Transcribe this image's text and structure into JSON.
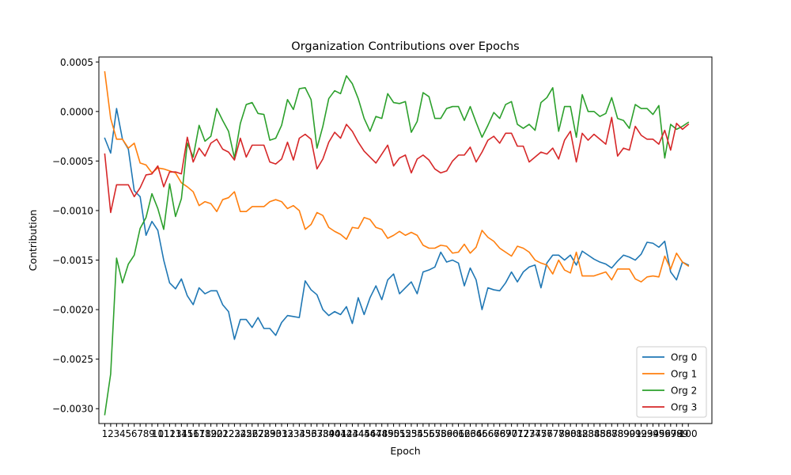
{
  "chart_data": {
    "type": "line",
    "title": "Organization Contributions over Epochs",
    "xlabel": "Epoch",
    "ylabel": "Contribution",
    "ylim": [
      -0.00315,
      0.00055
    ],
    "yticks": [
      0.0005,
      0.0,
      -0.0005,
      -0.001,
      -0.0015,
      -0.002,
      -0.0025,
      -0.003
    ],
    "ytick_labels": [
      "0.0005",
      "0.0000",
      "−0.0005",
      "−0.0010",
      "−0.0015",
      "−0.0020",
      "−0.0025",
      "−0.0030"
    ],
    "legend_position": "lower right",
    "grid": false,
    "x": [
      1,
      2,
      3,
      4,
      5,
      6,
      7,
      8,
      9,
      10,
      11,
      12,
      13,
      14,
      15,
      16,
      17,
      18,
      19,
      20,
      21,
      22,
      23,
      24,
      25,
      26,
      27,
      28,
      29,
      30,
      31,
      32,
      33,
      34,
      35,
      36,
      37,
      38,
      39,
      40,
      41,
      42,
      43,
      44,
      45,
      46,
      47,
      48,
      49,
      50,
      51,
      52,
      53,
      54,
      55,
      56,
      57,
      58,
      59,
      60,
      61,
      62,
      63,
      64,
      65,
      66,
      67,
      68,
      69,
      70,
      71,
      72,
      73,
      74,
      75,
      76,
      77,
      78,
      79,
      80,
      81,
      82,
      83,
      84,
      85,
      86,
      87,
      88,
      89,
      90,
      91,
      92,
      93,
      94,
      95,
      96,
      97,
      98,
      99,
      100
    ],
    "series": [
      {
        "name": "Org 0",
        "color": "#1f77b4",
        "values": [
          -0.00027,
          -0.00042,
          3e-05,
          -0.00028,
          -0.00038,
          -0.0008,
          -0.00086,
          -0.00125,
          -0.00111,
          -0.0012,
          -0.0015,
          -0.00173,
          -0.00179,
          -0.00169,
          -0.00186,
          -0.00195,
          -0.00178,
          -0.00184,
          -0.00181,
          -0.00181,
          -0.00195,
          -0.00202,
          -0.0023,
          -0.0021,
          -0.0021,
          -0.00218,
          -0.00208,
          -0.00219,
          -0.00219,
          -0.00226,
          -0.00213,
          -0.00206,
          -0.00207,
          -0.00208,
          -0.00171,
          -0.0018,
          -0.00185,
          -0.002,
          -0.00206,
          -0.00202,
          -0.00205,
          -0.00197,
          -0.00214,
          -0.00188,
          -0.00205,
          -0.00188,
          -0.00176,
          -0.0019,
          -0.0017,
          -0.00164,
          -0.00184,
          -0.00178,
          -0.00172,
          -0.00184,
          -0.00162,
          -0.0016,
          -0.00157,
          -0.00142,
          -0.00152,
          -0.0015,
          -0.00153,
          -0.00176,
          -0.00158,
          -0.0017,
          -0.002,
          -0.00178,
          -0.0018,
          -0.00181,
          -0.00173,
          -0.00162,
          -0.00172,
          -0.00162,
          -0.00157,
          -0.00155,
          -0.00178,
          -0.00153,
          -0.00145,
          -0.00145,
          -0.0015,
          -0.00145,
          -0.00155,
          -0.00141,
          -0.00145,
          -0.00149,
          -0.00152,
          -0.00154,
          -0.00158,
          -0.00151,
          -0.00145,
          -0.00147,
          -0.0015,
          -0.00144,
          -0.00132,
          -0.00133,
          -0.00137,
          -0.00131,
          -0.00162,
          -0.0017,
          -0.00152,
          -0.00155
        ]
      },
      {
        "name": "Org 1",
        "color": "#ff7f0e",
        "values": [
          0.0004,
          -7e-05,
          -0.00028,
          -0.00028,
          -0.00037,
          -0.00032,
          -0.00052,
          -0.00054,
          -0.00062,
          -0.00057,
          -0.00058,
          -0.0006,
          -0.00062,
          -0.00072,
          -0.00076,
          -0.00081,
          -0.00095,
          -0.00091,
          -0.00093,
          -0.00101,
          -0.00089,
          -0.00087,
          -0.00081,
          -0.00101,
          -0.00101,
          -0.00096,
          -0.00096,
          -0.00096,
          -0.00091,
          -0.00089,
          -0.00091,
          -0.00098,
          -0.00095,
          -0.001,
          -0.00119,
          -0.00114,
          -0.00102,
          -0.00105,
          -0.00117,
          -0.00121,
          -0.00124,
          -0.00129,
          -0.00117,
          -0.00118,
          -0.00107,
          -0.00109,
          -0.00117,
          -0.00119,
          -0.00128,
          -0.00125,
          -0.00121,
          -0.00125,
          -0.00122,
          -0.00125,
          -0.00135,
          -0.00138,
          -0.00138,
          -0.00135,
          -0.00136,
          -0.00143,
          -0.00142,
          -0.00134,
          -0.00143,
          -0.00137,
          -0.0012,
          -0.00127,
          -0.00131,
          -0.00138,
          -0.00142,
          -0.00146,
          -0.00136,
          -0.00138,
          -0.00142,
          -0.0015,
          -0.00153,
          -0.00155,
          -0.00164,
          -0.0015,
          -0.0016,
          -0.00163,
          -0.00142,
          -0.00166,
          -0.00166,
          -0.00166,
          -0.00164,
          -0.00162,
          -0.0017,
          -0.00159,
          -0.00159,
          -0.00159,
          -0.00169,
          -0.00172,
          -0.00167,
          -0.00166,
          -0.00167,
          -0.00146,
          -0.00159,
          -0.00143,
          -0.00152,
          -0.00156
        ]
      },
      {
        "name": "Org 2",
        "color": "#2ca02c",
        "values": [
          -0.00306,
          -0.00265,
          -0.00148,
          -0.00173,
          -0.00154,
          -0.00145,
          -0.00118,
          -0.00107,
          -0.00083,
          -0.00098,
          -0.00119,
          -0.00073,
          -0.00106,
          -0.00088,
          -0.00032,
          -0.00046,
          -0.00014,
          -0.0003,
          -0.00025,
          3e-05,
          -9e-05,
          -0.0002,
          -0.00047,
          -0.00012,
          7e-05,
          9e-05,
          -2e-05,
          -3e-05,
          -0.00029,
          -0.00027,
          -0.00014,
          0.00012,
          2e-05,
          0.00023,
          0.00024,
          0.00012,
          -0.00037,
          -0.00015,
          0.00013,
          0.00021,
          0.00018,
          0.00036,
          0.00028,
          0.00013,
          -7e-05,
          -0.0002,
          -5e-05,
          -7e-05,
          0.00018,
          9e-05,
          8e-05,
          0.0001,
          -0.00021,
          -0.0001,
          0.00019,
          0.00015,
          -7e-05,
          -7e-05,
          3e-05,
          5e-05,
          5e-05,
          -9e-05,
          5e-05,
          -0.00011,
          -0.00026,
          -0.00014,
          -1e-05,
          -7e-05,
          7e-05,
          0.0001,
          -0.00013,
          -0.00017,
          -0.00013,
          -0.00019,
          9e-05,
          0.00014,
          0.00024,
          -0.0002,
          5e-05,
          5e-05,
          -0.00026,
          0.00017,
          0.0,
          0.0,
          -5e-05,
          -2e-05,
          0.00014,
          -7e-05,
          -9e-05,
          -0.00017,
          7e-05,
          3e-05,
          3e-05,
          -3e-05,
          6e-05,
          -0.00047,
          -0.00013,
          -0.00018,
          -0.00015,
          -0.00011
        ]
      },
      {
        "name": "Org 3",
        "color": "#d62728",
        "values": [
          -0.00043,
          -0.00102,
          -0.00074,
          -0.00074,
          -0.00074,
          -0.00086,
          -0.00077,
          -0.00064,
          -0.00063,
          -0.00055,
          -0.00076,
          -0.00061,
          -0.00061,
          -0.00063,
          -0.00026,
          -0.00051,
          -0.00037,
          -0.00045,
          -0.00032,
          -0.00028,
          -0.00038,
          -0.00041,
          -0.00049,
          -0.00027,
          -0.00046,
          -0.00034,
          -0.00034,
          -0.00034,
          -0.00051,
          -0.00053,
          -0.00048,
          -0.00031,
          -0.00049,
          -0.00027,
          -0.00023,
          -0.00028,
          -0.00058,
          -0.00048,
          -0.00031,
          -0.00021,
          -0.00027,
          -0.00013,
          -0.0002,
          -0.00031,
          -0.0004,
          -0.00046,
          -0.00052,
          -0.00043,
          -0.00034,
          -0.00055,
          -0.00047,
          -0.00044,
          -0.00062,
          -0.00048,
          -0.00044,
          -0.00049,
          -0.00058,
          -0.00062,
          -0.0006,
          -0.0005,
          -0.00044,
          -0.00044,
          -0.00036,
          -0.00051,
          -0.00041,
          -0.00029,
          -0.00025,
          -0.00032,
          -0.00022,
          -0.00022,
          -0.00035,
          -0.00035,
          -0.00051,
          -0.00046,
          -0.00041,
          -0.00043,
          -0.00037,
          -0.00048,
          -0.00029,
          -0.0002,
          -0.00051,
          -0.00022,
          -0.00029,
          -0.00023,
          -0.00028,
          -0.00033,
          -6e-05,
          -0.00045,
          -0.00037,
          -0.00039,
          -0.00015,
          -0.00024,
          -0.00028,
          -0.00028,
          -0.00033,
          -0.00019,
          -0.00039,
          -0.00012,
          -0.00018,
          -0.00013
        ]
      }
    ]
  }
}
